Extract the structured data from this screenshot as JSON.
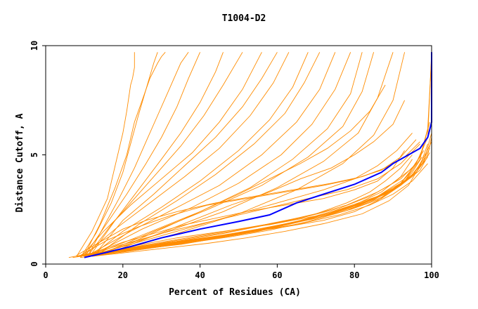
{
  "chart_data": {
    "type": "line",
    "title": "T1004-D2",
    "xlabel": "Percent of Residues (CA)",
    "ylabel": "Distance Cutoff, A",
    "xlim": [
      0,
      100
    ],
    "ylim": [
      0,
      10
    ],
    "x_ticks": [
      0,
      20,
      40,
      60,
      80,
      100
    ],
    "y_ticks": [
      0,
      5,
      10
    ],
    "grid": false,
    "legend": "none",
    "colors": {
      "highlight": "#0000ff",
      "others": "#ff8c00",
      "axes": "#000000"
    },
    "highlight_series": {
      "x": [
        10,
        15,
        22,
        30,
        40,
        50,
        58,
        65,
        72,
        80,
        87,
        90,
        94,
        97,
        99,
        100,
        100
      ],
      "y": [
        0.3,
        0.5,
        0.8,
        1.2,
        1.6,
        1.95,
        2.25,
        2.8,
        3.2,
        3.65,
        4.2,
        4.6,
        5.0,
        5.3,
        5.8,
        6.5,
        9.7
      ]
    },
    "series": [
      {
        "x": [
          8,
          12,
          16,
          18,
          20,
          21,
          22,
          22.5,
          23,
          23
        ],
        "y": [
          0.35,
          1.5,
          3.0,
          4.5,
          6.0,
          7.0,
          8.2,
          8.5,
          9.0,
          9.7
        ]
      },
      {
        "x": [
          10,
          14,
          18,
          21,
          23,
          25,
          27,
          29,
          30,
          31
        ],
        "y": [
          0.4,
          1.8,
          3.5,
          5.0,
          6.5,
          7.5,
          8.5,
          9.2,
          9.5,
          9.7
        ]
      },
      {
        "x": [
          9,
          13,
          17,
          20,
          22,
          24,
          26,
          28,
          29
        ],
        "y": [
          0.3,
          1.4,
          2.8,
          4.2,
          5.5,
          6.8,
          8.0,
          9.2,
          9.7
        ]
      },
      {
        "x": [
          11,
          15,
          19,
          23,
          26,
          29,
          32,
          35,
          37
        ],
        "y": [
          0.4,
          1.7,
          3.0,
          4.4,
          5.6,
          6.8,
          8.0,
          9.2,
          9.7
        ]
      },
      {
        "x": [
          10,
          16,
          21,
          26,
          30,
          34,
          37,
          40
        ],
        "y": [
          0.35,
          1.9,
          3.2,
          4.6,
          5.8,
          7.2,
          8.5,
          9.7
        ]
      },
      {
        "x": [
          12,
          18,
          24,
          30,
          35,
          40,
          44,
          46
        ],
        "y": [
          0.5,
          2.0,
          3.4,
          4.8,
          6.0,
          7.4,
          8.8,
          9.7
        ]
      },
      {
        "x": [
          11,
          17,
          23,
          29,
          35,
          41,
          46,
          51
        ],
        "y": [
          0.4,
          1.8,
          3.0,
          4.2,
          5.4,
          6.8,
          8.2,
          9.7
        ]
      },
      {
        "x": [
          9,
          15,
          22,
          30,
          38,
          45,
          51,
          56
        ],
        "y": [
          0.3,
          1.5,
          2.7,
          3.9,
          5.1,
          6.5,
          8.0,
          9.7
        ]
      },
      {
        "x": [
          13,
          20,
          28,
          36,
          44,
          51,
          56,
          60
        ],
        "y": [
          0.5,
          2.0,
          3.2,
          4.5,
          5.8,
          7.2,
          8.5,
          9.7
        ]
      },
      {
        "x": [
          10,
          18,
          27,
          36,
          45,
          53,
          59,
          63
        ],
        "y": [
          0.4,
          1.6,
          2.8,
          4.0,
          5.3,
          6.8,
          8.3,
          9.7
        ]
      },
      {
        "x": [
          12,
          20,
          30,
          40,
          50,
          58,
          64,
          68
        ],
        "y": [
          0.4,
          1.5,
          2.6,
          3.8,
          5.2,
          6.6,
          8.1,
          9.7
        ]
      },
      {
        "x": [
          14,
          24,
          34,
          44,
          54,
          62,
          67,
          71
        ],
        "y": [
          0.5,
          1.8,
          2.9,
          4.1,
          5.5,
          6.9,
          8.3,
          9.7
        ]
      },
      {
        "x": [
          11,
          22,
          33,
          45,
          56,
          65,
          71,
          75
        ],
        "y": [
          0.4,
          1.5,
          2.5,
          3.6,
          5.0,
          6.5,
          8.0,
          9.7
        ]
      },
      {
        "x": [
          13,
          25,
          38,
          50,
          61,
          69,
          75,
          79
        ],
        "y": [
          0.5,
          1.6,
          2.6,
          3.7,
          5.0,
          6.4,
          8.0,
          9.7
        ]
      },
      {
        "x": [
          12,
          26,
          40,
          53,
          64,
          73,
          79,
          82
        ],
        "y": [
          0.4,
          1.4,
          2.4,
          3.5,
          4.8,
          6.2,
          7.8,
          9.7
        ]
      },
      {
        "x": [
          15,
          28,
          42,
          56,
          68,
          77,
          82,
          85
        ],
        "y": [
          0.5,
          1.5,
          2.5,
          3.6,
          4.9,
          6.3,
          7.9,
          9.7
        ]
      },
      {
        "x": [
          14,
          30,
          46,
          60,
          72,
          81,
          86,
          90
        ],
        "y": [
          0.5,
          1.4,
          2.4,
          3.5,
          4.7,
          6.0,
          7.6,
          9.7
        ]
      },
      {
        "x": [
          16,
          34,
          50,
          65,
          77,
          85,
          90,
          93
        ],
        "y": [
          0.5,
          1.4,
          2.3,
          3.4,
          4.6,
          5.9,
          7.5,
          9.7
        ]
      },
      {
        "x": [
          7,
          15,
          25,
          35,
          45,
          55,
          65,
          75,
          85,
          92,
          96,
          99,
          100
        ],
        "y": [
          0.3,
          0.5,
          0.7,
          0.9,
          1.2,
          1.5,
          1.9,
          2.4,
          3.0,
          3.7,
          4.6,
          5.8,
          9.7
        ]
      },
      {
        "x": [
          8,
          16,
          26,
          36,
          46,
          56,
          66,
          76,
          86,
          93,
          97,
          99,
          100
        ],
        "y": [
          0.35,
          0.6,
          0.8,
          1.0,
          1.3,
          1.6,
          2.0,
          2.5,
          3.1,
          3.9,
          4.9,
          6.2,
          9.5
        ]
      },
      {
        "x": [
          9,
          18,
          28,
          38,
          48,
          58,
          68,
          78,
          87,
          93,
          97,
          99.5
        ],
        "y": [
          0.3,
          0.5,
          0.75,
          1.0,
          1.25,
          1.55,
          1.95,
          2.45,
          3.05,
          3.8,
          4.8,
          6.5
        ]
      },
      {
        "x": [
          10,
          20,
          30,
          40,
          50,
          60,
          70,
          80,
          88,
          94,
          98,
          100
        ],
        "y": [
          0.35,
          0.55,
          0.8,
          1.05,
          1.35,
          1.7,
          2.1,
          2.6,
          3.2,
          3.9,
          4.7,
          6.0
        ]
      },
      {
        "x": [
          11,
          21,
          31,
          41,
          51,
          61,
          71,
          81,
          89,
          95,
          98,
          100
        ],
        "y": [
          0.4,
          0.6,
          0.85,
          1.1,
          1.4,
          1.75,
          2.15,
          2.7,
          3.3,
          4.0,
          4.9,
          5.6
        ]
      },
      {
        "x": [
          12,
          22,
          32,
          42,
          52,
          62,
          72,
          82,
          90,
          95,
          98,
          99.5
        ],
        "y": [
          0.4,
          0.65,
          0.9,
          1.15,
          1.45,
          1.8,
          2.25,
          2.8,
          3.4,
          4.1,
          4.8,
          5.3
        ]
      },
      {
        "x": [
          13,
          23,
          33,
          43,
          53,
          63,
          73,
          83,
          90,
          96,
          99,
          100
        ],
        "y": [
          0.45,
          0.7,
          0.95,
          1.2,
          1.5,
          1.85,
          2.3,
          2.85,
          3.45,
          4.2,
          5.0,
          5.8
        ]
      },
      {
        "x": [
          14,
          24,
          34,
          44,
          54,
          64,
          74,
          84,
          91,
          96,
          99
        ],
        "y": [
          0.45,
          0.7,
          0.95,
          1.25,
          1.55,
          1.9,
          2.35,
          2.9,
          3.5,
          4.2,
          4.9
        ]
      },
      {
        "x": [
          15,
          25,
          35,
          45,
          55,
          65,
          75,
          85,
          92,
          97,
          99.5
        ],
        "y": [
          0.5,
          0.75,
          1.0,
          1.3,
          1.6,
          1.95,
          2.4,
          2.95,
          3.6,
          4.3,
          5.1
        ]
      },
      {
        "x": [
          12,
          22,
          32,
          42,
          52,
          62,
          72,
          82,
          89,
          94,
          97,
          99
        ],
        "y": [
          0.35,
          0.55,
          0.75,
          0.95,
          1.2,
          1.5,
          1.85,
          2.3,
          2.9,
          3.6,
          4.5,
          5.5
        ]
      },
      {
        "x": [
          16,
          26,
          36,
          46,
          56,
          66,
          76,
          84,
          90,
          95,
          98
        ],
        "y": [
          0.5,
          0.8,
          1.1,
          1.4,
          1.75,
          2.1,
          2.55,
          3.1,
          3.7,
          4.4,
          5.2
        ]
      },
      {
        "x": [
          18,
          28,
          38,
          48,
          58,
          68,
          78,
          86,
          92,
          96,
          98
        ],
        "y": [
          0.6,
          0.9,
          1.2,
          1.5,
          1.85,
          2.2,
          2.7,
          3.3,
          3.9,
          4.6,
          5.4
        ]
      },
      {
        "x": [
          20,
          30,
          40,
          50,
          60,
          70,
          78,
          84,
          88,
          92,
          95
        ],
        "y": [
          0.7,
          1.0,
          1.3,
          1.6,
          1.9,
          2.3,
          2.8,
          3.3,
          3.8,
          4.4,
          5.0
        ]
      },
      {
        "x": [
          22,
          34,
          46,
          58,
          70,
          80,
          87,
          92,
          95
        ],
        "y": [
          0.8,
          1.2,
          1.5,
          1.8,
          2.2,
          2.7,
          3.3,
          4.0,
          4.8
        ]
      },
      {
        "x": [
          9,
          19,
          29,
          39,
          49,
          59,
          69,
          79,
          87,
          92,
          95,
          97.5
        ],
        "y": [
          0.4,
          0.6,
          0.9,
          1.15,
          1.4,
          1.7,
          2.05,
          2.5,
          3.0,
          3.6,
          4.2,
          4.9
        ]
      },
      {
        "x": [
          8,
          18,
          28,
          38,
          50,
          62,
          72,
          80,
          86,
          91,
          95
        ],
        "y": [
          0.35,
          0.6,
          0.85,
          1.1,
          1.4,
          1.7,
          2.0,
          2.4,
          2.9,
          3.5,
          4.3
        ]
      },
      {
        "x": [
          6,
          12,
          20,
          28,
          36,
          44,
          52,
          62,
          72,
          80,
          86,
          90,
          93
        ],
        "y": [
          0.3,
          0.5,
          1.0,
          1.4,
          1.8,
          2.1,
          2.4,
          2.7,
          3.0,
          3.4,
          3.8,
          4.4,
          5.2
        ]
      },
      {
        "x": [
          10,
          20,
          30,
          42,
          54,
          66,
          76,
          84,
          90,
          95,
          99
        ],
        "y": [
          0.45,
          0.7,
          0.95,
          1.2,
          1.5,
          1.85,
          2.25,
          2.7,
          3.2,
          3.8,
          4.6
        ]
      },
      {
        "x": [
          8,
          14,
          20,
          26,
          34,
          44,
          54,
          64,
          74,
          82,
          88,
          93,
          97
        ],
        "y": [
          0.4,
          1.0,
          1.6,
          2.0,
          2.4,
          2.8,
          3.1,
          3.4,
          3.7,
          4.0,
          4.4,
          4.9,
          5.6
        ]
      },
      {
        "x": [
          9,
          16,
          24,
          32,
          42,
          52,
          62,
          72,
          80,
          87,
          92,
          96
        ],
        "y": [
          0.4,
          1.1,
          1.7,
          2.2,
          2.7,
          3.0,
          3.3,
          3.6,
          3.9,
          4.3,
          4.9,
          5.7
        ]
      },
      {
        "x": [
          12,
          22,
          32,
          44,
          56,
          68,
          78,
          86,
          92,
          97
        ],
        "y": [
          0.5,
          1.0,
          1.5,
          2.0,
          2.5,
          3.0,
          3.4,
          3.9,
          4.6,
          5.5
        ]
      },
      {
        "x": [
          14,
          26,
          38,
          50,
          62,
          72,
          80,
          86,
          91,
          95
        ],
        "y": [
          0.5,
          1.1,
          1.7,
          2.3,
          2.9,
          3.4,
          3.9,
          4.5,
          5.2,
          6.0
        ]
      },
      {
        "x": [
          18,
          28,
          38,
          48,
          58,
          66,
          74,
          80,
          85,
          90,
          93
        ],
        "y": [
          0.6,
          1.3,
          2.0,
          2.7,
          3.3,
          3.9,
          4.4,
          5.0,
          5.6,
          6.4,
          7.5
        ]
      },
      {
        "x": [
          20,
          30,
          40,
          50,
          58,
          66,
          73,
          79,
          84,
          88
        ],
        "y": [
          0.8,
          1.6,
          2.4,
          3.2,
          3.9,
          4.6,
          5.3,
          6.1,
          7.0,
          8.2
        ]
      }
    ]
  }
}
